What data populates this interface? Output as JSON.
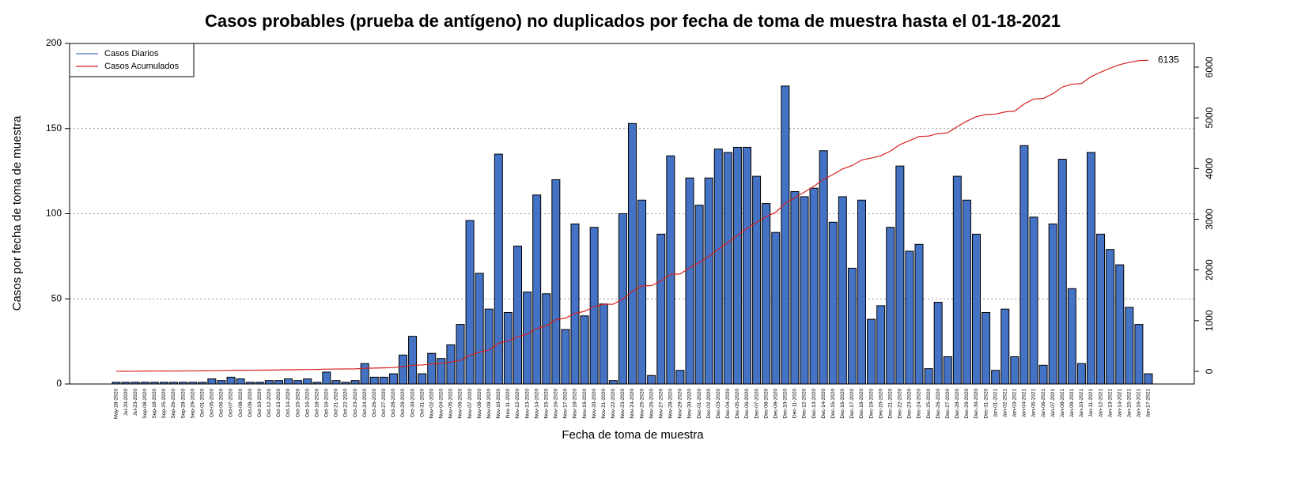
{
  "chart_data": {
    "type": "bar",
    "title": "Casos probables (prueba de antígeno) no duplicados por fecha de toma de muestra hasta el 01-18-2021",
    "x_label": "Fecha de toma de muestra",
    "y_label": "Casos por fecha de toma de muestra",
    "categories": [
      "May-28-2020",
      "Jul-20-2020",
      "Jul-23-2020",
      "Sep-08-2020",
      "Sep-18-2020",
      "Sep-25-2020",
      "Sep-26-2020",
      "Sep-28-2020",
      "Sep-29-2020",
      "Oct-01-2020",
      "Oct-05-2020",
      "Oct-06-2020",
      "Oct-07-2020",
      "Oct-08-2020",
      "Oct-09-2020",
      "Oct-10-2020",
      "Oct-12-2020",
      "Oct-13-2020",
      "Oct-14-2020",
      "Oct-15-2020",
      "Oct-16-2020",
      "Oct-18-2020",
      "Oct-19-2020",
      "Oct-21-2020",
      "Oct-22-2020",
      "Oct-23-2020",
      "Oct-24-2020",
      "Oct-26-2020",
      "Oct-27-2020",
      "Oct-28-2020",
      "Oct-29-2020",
      "Oct-30-2020",
      "Oct-31-2020",
      "Nov-02-2020",
      "Nov-04-2020",
      "Nov-05-2020",
      "Nov-06-2020",
      "Nov-07-2020",
      "Nov-08-2020",
      "Nov-09-2020",
      "Nov-10-2020",
      "Nov-11-2020",
      "Nov-12-2020",
      "Nov-13-2020",
      "Nov-14-2020",
      "Nov-15-2020",
      "Nov-16-2020",
      "Nov-17-2020",
      "Nov-18-2020",
      "Nov-19-2020",
      "Nov-20-2020",
      "Nov-21-2020",
      "Nov-22-2020",
      "Nov-23-2020",
      "Nov-24-2020",
      "Nov-25-2020",
      "Nov-26-2020",
      "Nov-27-2020",
      "Nov-28-2020",
      "Nov-29-2020",
      "Nov-30-2020",
      "Dec-01-2020",
      "Dec-02-2020",
      "Dec-03-2020",
      "Dec-04-2020",
      "Dec-05-2020",
      "Dec-06-2020",
      "Dec-07-2020",
      "Dec-08-2020",
      "Dec-09-2020",
      "Dec-10-2020",
      "Dec-11-2020",
      "Dec-12-2020",
      "Dec-13-2020",
      "Dec-14-2020",
      "Dec-15-2020",
      "Dec-16-2020",
      "Dec-17-2020",
      "Dec-18-2020",
      "Dec-19-2020",
      "Dec-20-2020",
      "Dec-21-2020",
      "Dec-22-2020",
      "Dec-23-2020",
      "Dec-24-2020",
      "Dec-25-2020",
      "Dec-26-2020",
      "Dec-27-2020",
      "Dec-28-2020",
      "Dec-29-2020",
      "Dec-30-2020",
      "Dec-31-2020",
      "Jan-01-2021",
      "Jan-02-2021",
      "Jan-03-2021",
      "Jan-04-2021",
      "Jan-05-2021",
      "Jan-06-2021",
      "Jan-07-2021",
      "Jan-08-2021",
      "Jan-09-2021",
      "Jan-10-2021",
      "Jan-11-2021",
      "Jan-12-2021",
      "Jan-13-2021",
      "Jan-14-2021",
      "Jan-15-2021",
      "Jan-16-2021",
      "Jan-17-2021"
    ],
    "series": [
      {
        "name": "Casos Diarios",
        "color": "#4472c4",
        "values": [
          1,
          1,
          1,
          1,
          1,
          1,
          1,
          1,
          1,
          1,
          3,
          2,
          4,
          3,
          1,
          1,
          2,
          2,
          3,
          2,
          3,
          1,
          7,
          2,
          1,
          2,
          12,
          4,
          4,
          6,
          17,
          28,
          6,
          18,
          15,
          23,
          35,
          96,
          65,
          44,
          135,
          42,
          81,
          54,
          111,
          53,
          120,
          32,
          94,
          40,
          92,
          47,
          2,
          100,
          153,
          108,
          5,
          88,
          134,
          8,
          121,
          105,
          121,
          138,
          136,
          139,
          139,
          122,
          106,
          89,
          175,
          113,
          110,
          115,
          137,
          95,
          110,
          68,
          108,
          38,
          46,
          92,
          128,
          78,
          82,
          9,
          48,
          16,
          122,
          108,
          88,
          42,
          8,
          44,
          16,
          140,
          98,
          11,
          94,
          132,
          56,
          12,
          136,
          88,
          79,
          70,
          45,
          35,
          6
        ]
      },
      {
        "name": "Casos Acumulados",
        "color": "#d62020",
        "axis": "y2",
        "values": [
          1,
          2,
          3,
          4,
          5,
          6,
          7,
          8,
          9,
          10,
          13,
          15,
          19,
          22,
          23,
          24,
          26,
          28,
          31,
          33,
          36,
          37,
          44,
          46,
          47,
          49,
          61,
          65,
          69,
          75,
          92,
          120,
          126,
          144,
          159,
          182,
          217,
          313,
          378,
          422,
          557,
          599,
          680,
          734,
          845,
          898,
          1018,
          1050,
          1144,
          1184,
          1276,
          1323,
          1325,
          1425,
          1578,
          1686,
          1691,
          1779,
          1913,
          1921,
          2042,
          2147,
          2268,
          2406,
          2542,
          2681,
          2820,
          2942,
          3048,
          3137,
          3312,
          3425,
          3535,
          3650,
          3787,
          3882,
          3992,
          4060,
          4168,
          4206,
          4252,
          4344,
          4472,
          4550,
          4632,
          4641,
          4689,
          4705,
          4827,
          4935,
          5023,
          5065,
          5073,
          5117,
          5133,
          5273,
          5371,
          5382,
          5476,
          5608,
          5664,
          5676,
          5812,
          5900,
          5979,
          6049,
          6094,
          6129,
          6135
        ]
      }
    ],
    "ylim": [
      0,
      200
    ],
    "yticks": [
      0,
      50,
      100,
      150,
      200
    ],
    "y2lim": [
      -249,
      6467
    ],
    "y2ticks": [
      0,
      1000,
      2000,
      3000,
      4000,
      5000,
      6000
    ],
    "grid": true,
    "legend": "top-left"
  }
}
